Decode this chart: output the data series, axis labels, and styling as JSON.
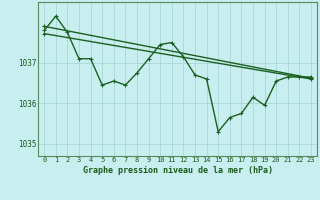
{
  "xlabel": "Graphe pression niveau de la mer (hPa)",
  "bg_color": "#c8eef0",
  "grid_color": "#a8d8d8",
  "line_color": "#1a6020",
  "text_color": "#1a5c1a",
  "xmin": -0.5,
  "xmax": 23.5,
  "ymin": 1034.7,
  "ymax": 1038.5,
  "yticks": [
    1035,
    1036,
    1037
  ],
  "xticks": [
    0,
    1,
    2,
    3,
    4,
    5,
    6,
    7,
    8,
    9,
    10,
    11,
    12,
    13,
    14,
    15,
    16,
    17,
    18,
    19,
    20,
    21,
    22,
    23
  ],
  "main_x": [
    0,
    1,
    2,
    3,
    4,
    5,
    6,
    7,
    8,
    9,
    10,
    11,
    12,
    13,
    14,
    15,
    16,
    17,
    18,
    19,
    20,
    21,
    22,
    23
  ],
  "main_y": [
    1037.8,
    1038.15,
    1037.75,
    1037.1,
    1037.1,
    1036.45,
    1036.55,
    1036.45,
    1036.75,
    1037.1,
    1037.45,
    1037.5,
    1037.15,
    1036.7,
    1036.6,
    1035.3,
    1035.65,
    1035.75,
    1036.15,
    1035.95,
    1036.55,
    1036.65,
    1036.65,
    1036.65
  ],
  "trend1_x": [
    0,
    23
  ],
  "trend1_y": [
    1037.9,
    1036.62
  ],
  "trend2_x": [
    0,
    23
  ],
  "trend2_y": [
    1037.72,
    1036.6
  ],
  "lw": 1.0,
  "ms": 3.5
}
